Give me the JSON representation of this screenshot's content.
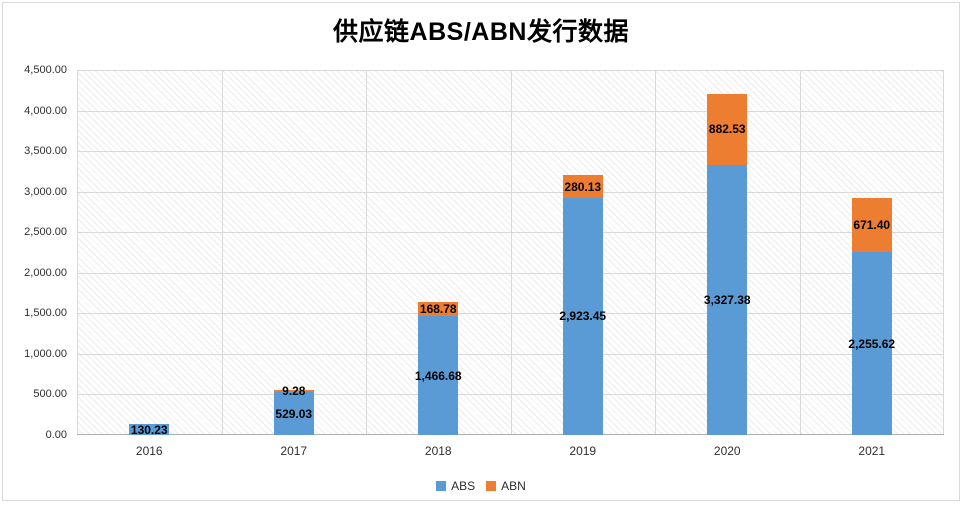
{
  "title": "供应链ABS/ABN发行数据",
  "chart_data": {
    "type": "bar",
    "stacked": true,
    "title": "供应链ABS/ABN发行数据",
    "categories": [
      "2016",
      "2017",
      "2018",
      "2019",
      "2020",
      "2021"
    ],
    "series": [
      {
        "name": "ABS",
        "color": "#5B9BD5",
        "values": [
          130.23,
          529.03,
          1466.68,
          2923.45,
          3327.38,
          2255.62
        ],
        "data_labels": [
          "130.23",
          "529.03",
          "1,466.68",
          "2,923.45",
          "3,327.38",
          "2,255.62"
        ]
      },
      {
        "name": "ABN",
        "color": "#ED7D31",
        "values": [
          0,
          9.28,
          168.78,
          280.13,
          882.53,
          671.4
        ],
        "data_labels": [
          "",
          "9.28",
          "168.78",
          "280.13",
          "882.53",
          "671.40"
        ]
      }
    ],
    "ylim": [
      0,
      4500
    ],
    "ytick_step": 500,
    "ytick_labels": [
      "0.00",
      "500.00",
      "1,000.00",
      "1,500.00",
      "2,000.00",
      "2,500.00",
      "3,000.00",
      "3,500.00",
      "4,000.00",
      "4,500.00"
    ],
    "legend": {
      "position": "bottom",
      "entries": [
        "ABS",
        "ABN"
      ]
    },
    "grid": {
      "horizontal": true,
      "vertical": true
    },
    "plot_background": "light-diagonal-hatch",
    "colors": {
      "gridline": "#d9d9d9",
      "axis_line": "#adadad",
      "tick_label": "#2e2e2e",
      "data_label": "#000000",
      "chart_border": "#d9d9d9"
    }
  }
}
